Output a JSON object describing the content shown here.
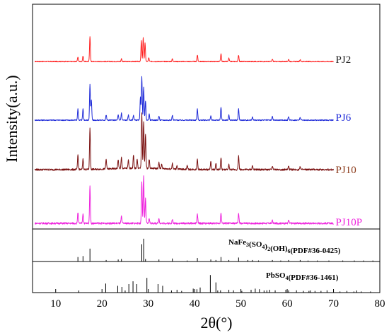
{
  "chart_data": {
    "type": "line",
    "xlabel": "2θ(°)",
    "ylabel": "Intensity(a.u.)",
    "xlim": [
      5,
      80
    ],
    "xticks": [
      10,
      20,
      30,
      40,
      50,
      60,
      70,
      80
    ],
    "grid": false,
    "legend": "labels at right end of each pattern",
    "series": [
      {
        "name": "PJ2",
        "color": "#ff2020",
        "peaks": [
          {
            "x": 14.8,
            "y": 0.1
          },
          {
            "x": 15.9,
            "y": 0.12
          },
          {
            "x": 17.4,
            "y": 0.55
          },
          {
            "x": 24.2,
            "y": 0.06
          },
          {
            "x": 28.5,
            "y": 0.45
          },
          {
            "x": 28.9,
            "y": 0.52
          },
          {
            "x": 29.3,
            "y": 0.4
          },
          {
            "x": 30.1,
            "y": 0.08
          },
          {
            "x": 35.2,
            "y": 0.06
          },
          {
            "x": 40.6,
            "y": 0.14
          },
          {
            "x": 45.7,
            "y": 0.16
          },
          {
            "x": 47.4,
            "y": 0.07
          },
          {
            "x": 49.5,
            "y": 0.14
          },
          {
            "x": 56.8,
            "y": 0.05
          },
          {
            "x": 60.3,
            "y": 0.05
          },
          {
            "x": 62.8,
            "y": 0.04
          }
        ]
      },
      {
        "name": "PJ6",
        "color": "#1f2bd8",
        "peaks": [
          {
            "x": 14.8,
            "y": 0.22
          },
          {
            "x": 15.9,
            "y": 0.22
          },
          {
            "x": 17.4,
            "y": 0.7
          },
          {
            "x": 17.7,
            "y": 0.4
          },
          {
            "x": 20.9,
            "y": 0.1
          },
          {
            "x": 23.5,
            "y": 0.1
          },
          {
            "x": 24.2,
            "y": 0.14
          },
          {
            "x": 25.7,
            "y": 0.1
          },
          {
            "x": 26.8,
            "y": 0.1
          },
          {
            "x": 28.3,
            "y": 0.45
          },
          {
            "x": 28.6,
            "y": 0.85
          },
          {
            "x": 29.0,
            "y": 0.65
          },
          {
            "x": 29.4,
            "y": 0.38
          },
          {
            "x": 30.2,
            "y": 0.12
          },
          {
            "x": 32.3,
            "y": 0.08
          },
          {
            "x": 35.2,
            "y": 0.1
          },
          {
            "x": 40.6,
            "y": 0.22
          },
          {
            "x": 43.5,
            "y": 0.08
          },
          {
            "x": 45.7,
            "y": 0.25
          },
          {
            "x": 47.4,
            "y": 0.1
          },
          {
            "x": 49.5,
            "y": 0.22
          },
          {
            "x": 52.5,
            "y": 0.07
          },
          {
            "x": 56.8,
            "y": 0.07
          },
          {
            "x": 60.3,
            "y": 0.07
          },
          {
            "x": 62.8,
            "y": 0.06
          }
        ]
      },
      {
        "name": "PJ10",
        "color": "#7a1010",
        "peaks": [
          {
            "x": 14.8,
            "y": 0.3
          },
          {
            "x": 15.9,
            "y": 0.22
          },
          {
            "x": 17.4,
            "y": 0.85
          },
          {
            "x": 20.9,
            "y": 0.2
          },
          {
            "x": 23.5,
            "y": 0.18
          },
          {
            "x": 24.2,
            "y": 0.22
          },
          {
            "x": 25.7,
            "y": 0.16
          },
          {
            "x": 26.8,
            "y": 0.26
          },
          {
            "x": 27.6,
            "y": 0.18
          },
          {
            "x": 28.6,
            "y": 1.1
          },
          {
            "x": 29.0,
            "y": 0.95
          },
          {
            "x": 29.4,
            "y": 0.7
          },
          {
            "x": 30.2,
            "y": 0.18
          },
          {
            "x": 32.3,
            "y": 0.12
          },
          {
            "x": 32.9,
            "y": 0.1
          },
          {
            "x": 35.2,
            "y": 0.12
          },
          {
            "x": 36.2,
            "y": 0.08
          },
          {
            "x": 38.4,
            "y": 0.08
          },
          {
            "x": 40.6,
            "y": 0.22
          },
          {
            "x": 43.5,
            "y": 0.16
          },
          {
            "x": 44.6,
            "y": 0.12
          },
          {
            "x": 45.7,
            "y": 0.25
          },
          {
            "x": 47.4,
            "y": 0.1
          },
          {
            "x": 49.5,
            "y": 0.28
          },
          {
            "x": 52.5,
            "y": 0.08
          },
          {
            "x": 56.8,
            "y": 0.07
          },
          {
            "x": 60.3,
            "y": 0.07
          },
          {
            "x": 62.8,
            "y": 0.07
          }
        ]
      },
      {
        "name": "PJ10P",
        "color": "#ee22dd",
        "peaks": [
          {
            "x": 14.8,
            "y": 0.22
          },
          {
            "x": 15.9,
            "y": 0.2
          },
          {
            "x": 17.4,
            "y": 0.75
          },
          {
            "x": 24.2,
            "y": 0.14
          },
          {
            "x": 28.6,
            "y": 0.85
          },
          {
            "x": 29.0,
            "y": 0.95
          },
          {
            "x": 29.4,
            "y": 0.5
          },
          {
            "x": 30.2,
            "y": 0.1
          },
          {
            "x": 32.3,
            "y": 0.1
          },
          {
            "x": 35.2,
            "y": 0.08
          },
          {
            "x": 40.6,
            "y": 0.18
          },
          {
            "x": 45.7,
            "y": 0.2
          },
          {
            "x": 49.5,
            "y": 0.2
          },
          {
            "x": 56.8,
            "y": 0.06
          },
          {
            "x": 60.3,
            "y": 0.06
          }
        ]
      }
    ],
    "references": [
      {
        "label_main": "NaFe",
        "label_sub": [
          "3",
          "4",
          "2",
          "6"
        ],
        "label_parts": [
          "(SO",
          ")",
          "(OH)",
          "(PDF#36-0425)"
        ],
        "sticks": [
          {
            "x": 14.8,
            "y": 0.18
          },
          {
            "x": 15.9,
            "y": 0.22
          },
          {
            "x": 17.4,
            "y": 0.52
          },
          {
            "x": 20.9,
            "y": 0.06
          },
          {
            "x": 23.5,
            "y": 0.08
          },
          {
            "x": 24.2,
            "y": 0.1
          },
          {
            "x": 28.6,
            "y": 0.7
          },
          {
            "x": 29.0,
            "y": 0.92
          },
          {
            "x": 29.4,
            "y": 0.1
          },
          {
            "x": 32.3,
            "y": 0.08
          },
          {
            "x": 35.2,
            "y": 0.12
          },
          {
            "x": 38.4,
            "y": 0.04
          },
          {
            "x": 40.6,
            "y": 0.14
          },
          {
            "x": 43.5,
            "y": 0.08
          },
          {
            "x": 44.6,
            "y": 0.06
          },
          {
            "x": 45.7,
            "y": 0.18
          },
          {
            "x": 47.4,
            "y": 0.06
          },
          {
            "x": 49.5,
            "y": 0.16
          },
          {
            "x": 51.5,
            "y": 0.06
          },
          {
            "x": 52.5,
            "y": 0.06
          },
          {
            "x": 53.8,
            "y": 0.04
          },
          {
            "x": 56.8,
            "y": 0.06
          },
          {
            "x": 58.6,
            "y": 0.04
          },
          {
            "x": 60.3,
            "y": 0.06
          },
          {
            "x": 62.8,
            "y": 0.06
          },
          {
            "x": 64.5,
            "y": 0.04
          },
          {
            "x": 66.5,
            "y": 0.04
          },
          {
            "x": 69.0,
            "y": 0.04
          },
          {
            "x": 72.0,
            "y": 0.04
          },
          {
            "x": 74.5,
            "y": 0.04
          },
          {
            "x": 76.5,
            "y": 0.04
          },
          {
            "x": 78.5,
            "y": 0.04
          }
        ]
      },
      {
        "label_main": "PbSO",
        "label_sub": [
          "4"
        ],
        "label_parts": [
          "(PDF#36-1461)"
        ],
        "sticks": [
          {
            "x": 20.8,
            "y": 0.32
          },
          {
            "x": 23.4,
            "y": 0.24
          },
          {
            "x": 24.3,
            "y": 0.2
          },
          {
            "x": 25.8,
            "y": 0.3
          },
          {
            "x": 26.7,
            "y": 0.4
          },
          {
            "x": 27.5,
            "y": 0.3
          },
          {
            "x": 29.7,
            "y": 0.52
          },
          {
            "x": 32.1,
            "y": 0.3
          },
          {
            "x": 33.1,
            "y": 0.24
          },
          {
            "x": 36.2,
            "y": 0.1
          },
          {
            "x": 37.2,
            "y": 0.06
          },
          {
            "x": 39.7,
            "y": 0.14
          },
          {
            "x": 40.5,
            "y": 0.12
          },
          {
            "x": 41.2,
            "y": 0.18
          },
          {
            "x": 43.4,
            "y": 0.62
          },
          {
            "x": 44.6,
            "y": 0.36
          },
          {
            "x": 45.6,
            "y": 0.08
          },
          {
            "x": 47.4,
            "y": 0.1
          },
          {
            "x": 48.4,
            "y": 0.08
          },
          {
            "x": 50.2,
            "y": 0.06
          },
          {
            "x": 52.2,
            "y": 0.1
          },
          {
            "x": 53.1,
            "y": 0.14
          },
          {
            "x": 54.0,
            "y": 0.12
          },
          {
            "x": 55.6,
            "y": 0.08
          },
          {
            "x": 56.2,
            "y": 0.1
          },
          {
            "x": 57.4,
            "y": 0.08
          },
          {
            "x": 59.7,
            "y": 0.1
          },
          {
            "x": 60.3,
            "y": 0.08
          },
          {
            "x": 62.0,
            "y": 0.08
          },
          {
            "x": 63.5,
            "y": 0.06
          },
          {
            "x": 64.7,
            "y": 0.06
          },
          {
            "x": 66.0,
            "y": 0.06
          },
          {
            "x": 67.3,
            "y": 0.06
          },
          {
            "x": 68.6,
            "y": 0.08
          },
          {
            "x": 70.0,
            "y": 0.06
          },
          {
            "x": 71.4,
            "y": 0.04
          },
          {
            "x": 72.9,
            "y": 0.06
          },
          {
            "x": 74.4,
            "y": 0.04
          },
          {
            "x": 76.0,
            "y": 0.04
          },
          {
            "x": 78.0,
            "y": 0.04
          }
        ]
      }
    ]
  }
}
